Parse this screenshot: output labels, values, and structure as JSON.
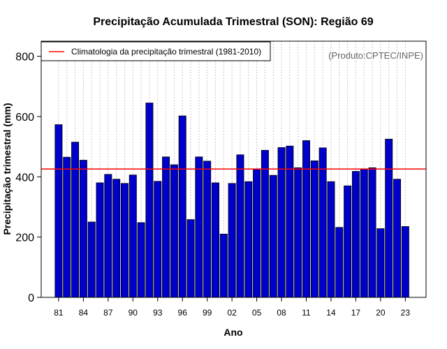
{
  "chart_data": {
    "type": "bar",
    "title": "Precipitação Acumulada Trimestral (SON): Região 69",
    "xlabel": "Ano",
    "ylabel": "Precipitação trimestral (mm)",
    "ylim": [
      0,
      850
    ],
    "yticks": [
      "0",
      "200",
      "400",
      "600",
      "800"
    ],
    "xtick_labels": [
      "81",
      "84",
      "87",
      "90",
      "93",
      "96",
      "99",
      "02",
      "05",
      "08",
      "11",
      "14",
      "17",
      "20",
      "23"
    ],
    "years": [
      1981,
      1982,
      1983,
      1984,
      1985,
      1986,
      1987,
      1988,
      1989,
      1990,
      1991,
      1992,
      1993,
      1994,
      1995,
      1996,
      1997,
      1998,
      1999,
      2000,
      2001,
      2002,
      2003,
      2004,
      2005,
      2006,
      2007,
      2008,
      2009,
      2010,
      2011,
      2012,
      2013,
      2014,
      2015,
      2016,
      2017,
      2018,
      2019,
      2020,
      2021,
      2022,
      2023
    ],
    "values": [
      573,
      465,
      515,
      455,
      250,
      380,
      408,
      392,
      378,
      406,
      248,
      645,
      385,
      466,
      440,
      602,
      258,
      466,
      452,
      380,
      210,
      378,
      473,
      384,
      425,
      488,
      405,
      497,
      502,
      430,
      520,
      453,
      496,
      384,
      232,
      370,
      418,
      425,
      430,
      228,
      525,
      392,
      235
    ],
    "bar_color": "#0000cc",
    "climatology": {
      "label": "Climatologia da precipitação trimestral (1981-2010)",
      "value": 426,
      "color": "#ff0000"
    },
    "legend_position": "top-left",
    "grid": "vertical dotted"
  },
  "annotation": "(Produto:CPTEC/INPE)"
}
